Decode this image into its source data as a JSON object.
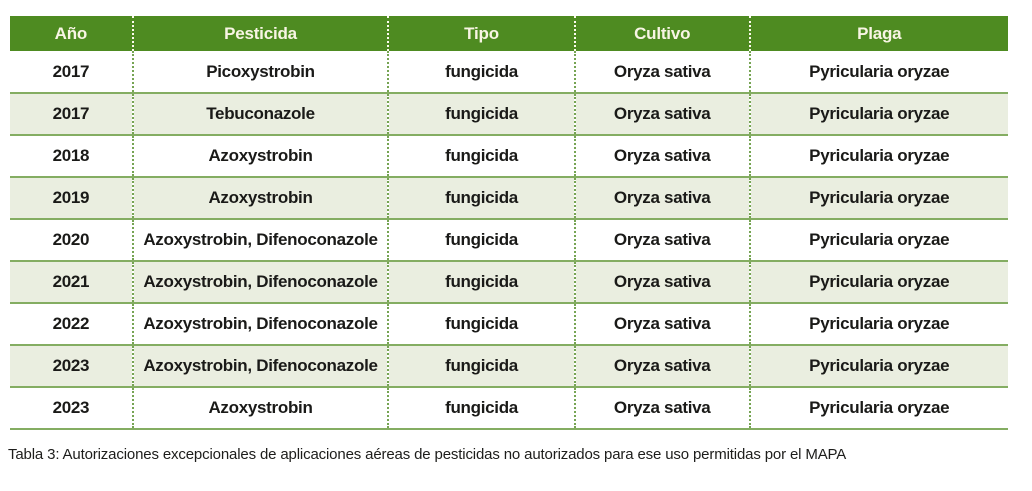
{
  "table": {
    "columns": [
      "Año",
      "Pesticida",
      "Tipo",
      "Cultivo",
      "Plaga"
    ],
    "rows": [
      [
        "2017",
        "Picoxystrobin",
        "fungicida",
        "Oryza sativa",
        "Pyricularia oryzae"
      ],
      [
        "2017",
        "Tebuconazole",
        "fungicida",
        "Oryza sativa",
        "Pyricularia oryzae"
      ],
      [
        "2018",
        "Azoxystrobin",
        "fungicida",
        "Oryza sativa",
        "Pyricularia oryzae"
      ],
      [
        "2019",
        "Azoxystrobin",
        "fungicida",
        "Oryza sativa",
        "Pyricularia oryzae"
      ],
      [
        "2020",
        "Azoxystrobin, Difenoconazole",
        "fungicida",
        "Oryza sativa",
        "Pyricularia oryzae"
      ],
      [
        "2021",
        "Azoxystrobin, Difenoconazole",
        "fungicida",
        "Oryza sativa",
        "Pyricularia oryzae"
      ],
      [
        "2022",
        "Azoxystrobin, Difenoconazole",
        "fungicida",
        "Oryza sativa",
        "Pyricularia oryzae"
      ],
      [
        "2023",
        "Azoxystrobin, Difenoconazole",
        "fungicida",
        "Oryza sativa",
        "Pyricularia oryzae"
      ],
      [
        "2023",
        "Azoxystrobin",
        "fungicida",
        "Oryza sativa",
        "Pyricularia oryzae"
      ]
    ]
  },
  "caption": "Tabla 3: Autorizaciones excepcionales de aplicaciones aéreas de pesticidas no autorizados para ese uso permitidas por el MAPA",
  "colors": {
    "header_bg": "#4e8b21",
    "header_text": "#f8f5e4",
    "row_alt_bg": "#eaeee0",
    "row_separator": "#84ad62",
    "column_divider_body": "#76a453",
    "column_divider_header": "#fdfbee",
    "cell_text": "#1a1a18"
  }
}
